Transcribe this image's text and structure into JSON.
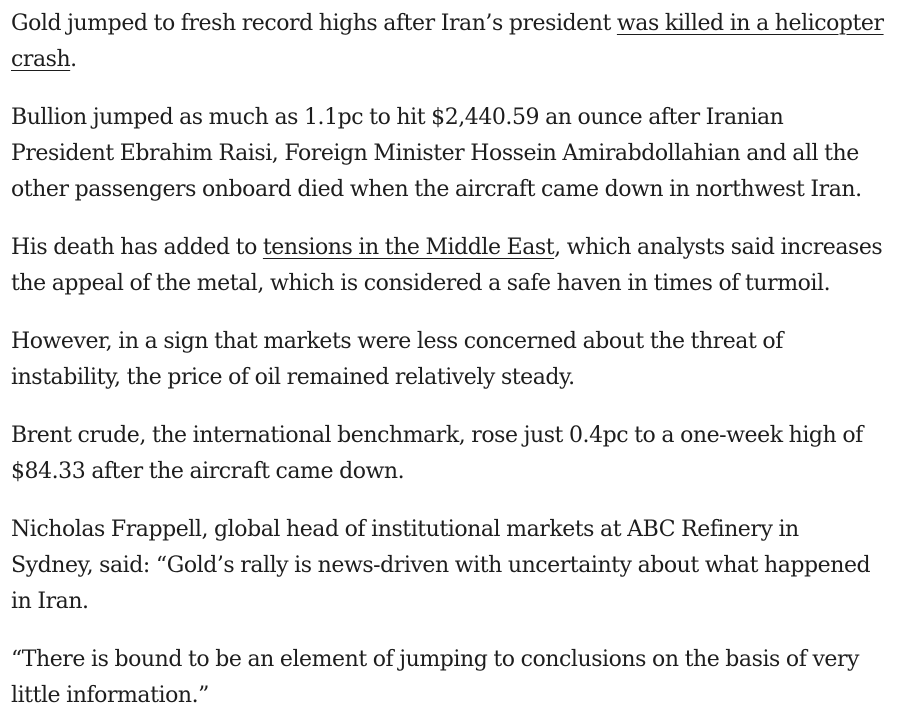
{
  "article": {
    "paragraphs": [
      {
        "before": "Gold jumped to fresh record highs after Iran’s president ",
        "link": "was killed in a helicopter crash",
        "after": "."
      },
      {
        "text": "Bullion jumped as much as 1.1pc to hit $2,440.59 an ounce after Iranian President Ebrahim Raisi, Foreign Minister Hossein Amirabdollahian and all the other passengers onboard died when the aircraft came down in northwest Iran."
      },
      {
        "before": "His death has added to ",
        "link": "tensions in the Middle East",
        "after": ", which analysts said increases the appeal of the metal, which is considered a safe haven in times of turmoil."
      },
      {
        "text": "However, in a sign that markets were less concerned about the threat of instability, the price of oil remained relatively steady."
      },
      {
        "text": "Brent crude, the international benchmark, rose just 0.4pc to a one-week high of $84.33 after the aircraft came down."
      },
      {
        "text": "Nicholas Frappell, global head of institutional markets at ABC Refinery in Sydney, said: “Gold’s rally is news-driven with uncertainty about what happened in Iran."
      },
      {
        "text": "“There is bound to be an element of jumping to conclusions on the basis of very little information.”"
      }
    ]
  }
}
